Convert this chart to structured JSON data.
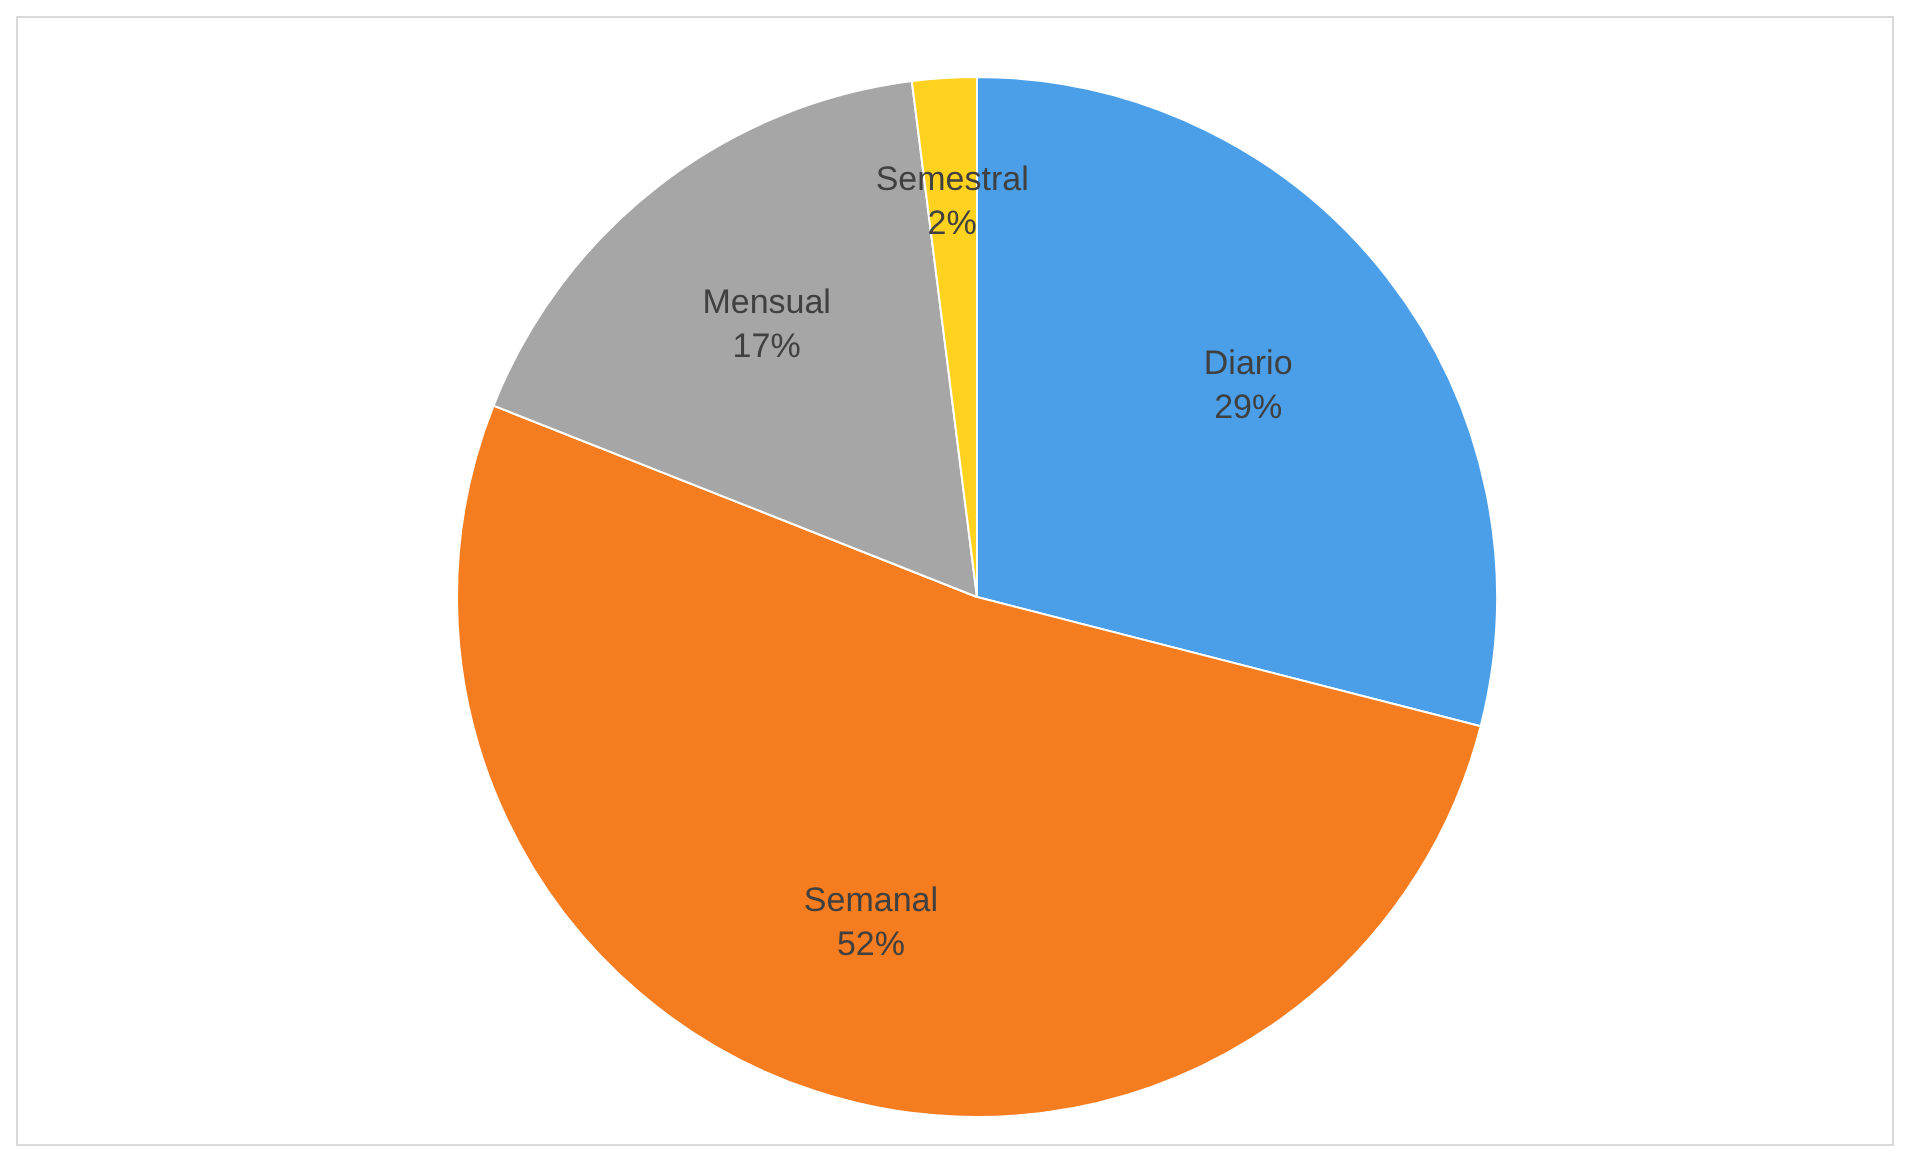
{
  "chart_data": {
    "type": "pie",
    "categories": [
      "Diario",
      "Semanal",
      "Mensual",
      "Semestral"
    ],
    "values": [
      29,
      52,
      17,
      2
    ],
    "colors": [
      "#4a9fe8",
      "#f57c1f",
      "#a6a6a6",
      "#ffd21f"
    ],
    "value_labels": [
      "29%",
      "52%",
      "17%",
      "2%"
    ],
    "legend": false
  }
}
